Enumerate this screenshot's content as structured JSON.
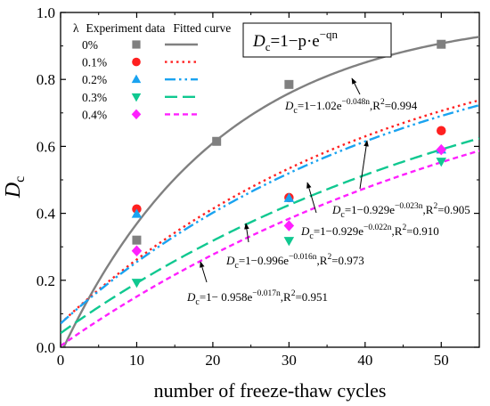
{
  "chart_data": {
    "type": "scatter",
    "xlabel": "number of freeze-thaw cycles",
    "ylabel": "Dc",
    "ylabel_main": "D",
    "ylabel_sub": "c",
    "xlim": [
      0,
      55
    ],
    "ylim": [
      0,
      1.0
    ],
    "xticks": [
      0,
      10,
      20,
      30,
      40,
      50
    ],
    "yticks": [
      0.0,
      0.2,
      0.4,
      0.6,
      0.8,
      1.0
    ],
    "xtick_labels": [
      "0",
      "10",
      "20",
      "30",
      "40",
      "50"
    ],
    "ytick_labels": [
      "0.0",
      "0.2",
      "0.4",
      "0.6",
      "0.8",
      "1.0"
    ],
    "grid": false,
    "legend": {
      "placement": "top-left",
      "header_lambda": "λ",
      "header_data": "Experiment data",
      "header_curve": "Fitted curve"
    },
    "formula_box": {
      "main": "D",
      "sub": "c",
      "rest": "=1−p·e",
      "exp": "−qn"
    },
    "series": [
      {
        "name": "0%",
        "color": "#808080",
        "marker": "square",
        "line": "solid",
        "points": [
          [
            10,
            0.32
          ],
          [
            20.5,
            0.615
          ],
          [
            30,
            0.785
          ],
          [
            50,
            0.905
          ]
        ],
        "fit": {
          "p": 1.02,
          "q": 0.048
        },
        "label_main": "D",
        "label_sub": "c",
        "label_rest": "=1−1.02e",
        "label_exp": "−0.048n",
        "label_tail": ",R",
        "label_sq": "2",
        "label_end": "=0.994"
      },
      {
        "name": "0.1%",
        "color": "#ff2020",
        "marker": "circle",
        "line": "dotted",
        "points": [
          [
            10,
            0.413
          ],
          [
            30,
            0.447
          ],
          [
            50,
            0.647
          ]
        ],
        "fit": {
          "p": 0.929,
          "q": 0.023
        },
        "label_main": "D",
        "label_sub": "c",
        "label_rest": "=1−0.929e",
        "label_exp": "−0.023n",
        "label_tail": ",R",
        "label_sq": "2",
        "label_end": "=0.905"
      },
      {
        "name": "0.2%",
        "color": "#1aa3f0",
        "marker": "triangle-up",
        "line": "dashdotdot",
        "points": [
          [
            10,
            0.398
          ],
          [
            30,
            0.445
          ],
          [
            50,
            0.59
          ]
        ],
        "fit": {
          "p": 0.929,
          "q": 0.022
        },
        "label_main": "D",
        "label_sub": "c",
        "label_rest": "=1−0.929e",
        "label_exp": "−0.022n",
        "label_tail": ",R",
        "label_sq": "2",
        "label_end": "=0.910"
      },
      {
        "name": "0.3%",
        "color": "#10c890",
        "marker": "triangle-down",
        "line": "dashed",
        "points": [
          [
            10,
            0.193
          ],
          [
            30,
            0.318
          ],
          [
            50,
            0.555
          ]
        ],
        "fit": {
          "p": 0.958,
          "q": 0.017
        },
        "label_main": "D",
        "label_sub": "c",
        "label_rest": "=1− 0.958e",
        "label_exp": "−0.017n",
        "label_tail": ",R",
        "label_sq": "2",
        "label_end": "=0.951"
      },
      {
        "name": "0.4%",
        "color": "#ff20ff",
        "marker": "diamond",
        "line": "shortdash",
        "points": [
          [
            10,
            0.288
          ],
          [
            30,
            0.363
          ],
          [
            50,
            0.59
          ]
        ],
        "fit": {
          "p": 0.996,
          "q": 0.016
        },
        "label_main": "D",
        "label_sub": "c",
        "label_rest": "=1−0.996e",
        "label_exp": "−0.016n",
        "label_tail": ",R",
        "label_sq": "2",
        "label_end": "=0.973"
      }
    ]
  }
}
